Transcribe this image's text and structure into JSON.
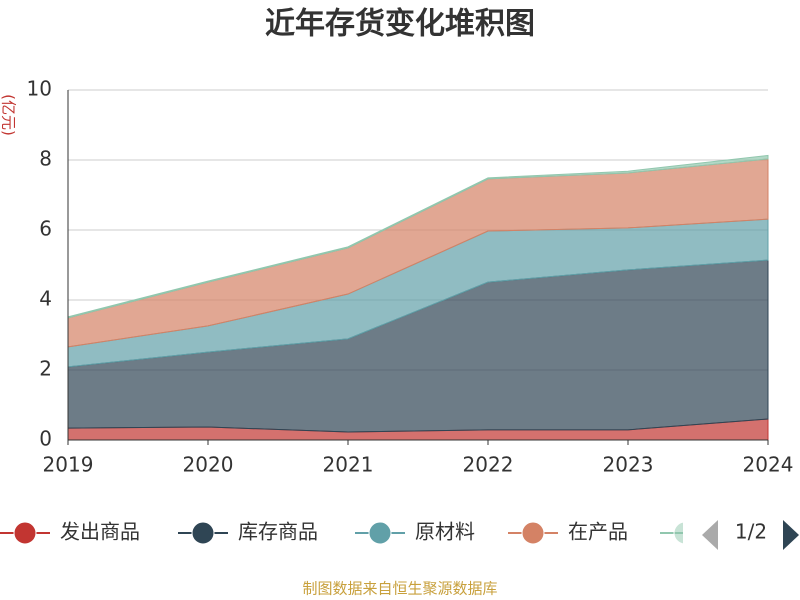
{
  "chart_data": {
    "type": "stacked_area",
    "title": "近年存货变化堆积图",
    "y_label": "(亿元)",
    "categories": [
      "2019",
      "2020",
      "2021",
      "2022",
      "2023",
      "2024"
    ],
    "series": [
      {
        "name": "发出商品",
        "color": "#c23531",
        "values": [
          0.34,
          0.37,
          0.23,
          0.29,
          0.29,
          0.6
        ]
      },
      {
        "name": "库存商品",
        "color": "#2f4554",
        "values": [
          1.75,
          2.14,
          2.66,
          4.22,
          4.57,
          4.54
        ]
      },
      {
        "name": "原材料",
        "color": "#61a0a8",
        "values": [
          0.57,
          0.75,
          1.28,
          1.46,
          1.2,
          1.17
        ]
      },
      {
        "name": "在产品",
        "color": "#d48265",
        "values": [
          0.83,
          1.25,
          1.32,
          1.49,
          1.57,
          1.72
        ]
      },
      {
        "color": "#91c7ae",
        "values": [
          0.03,
          0.03,
          0.03,
          0.03,
          0.05,
          0.1
        ]
      }
    ],
    "ylim": [
      0,
      10
    ],
    "yticks": [
      0,
      2,
      4,
      6,
      8,
      10
    ],
    "grid": true,
    "legend": {
      "position": "bottom",
      "page": "1/2"
    },
    "source": "制图数据来自恒生聚源数据库"
  }
}
